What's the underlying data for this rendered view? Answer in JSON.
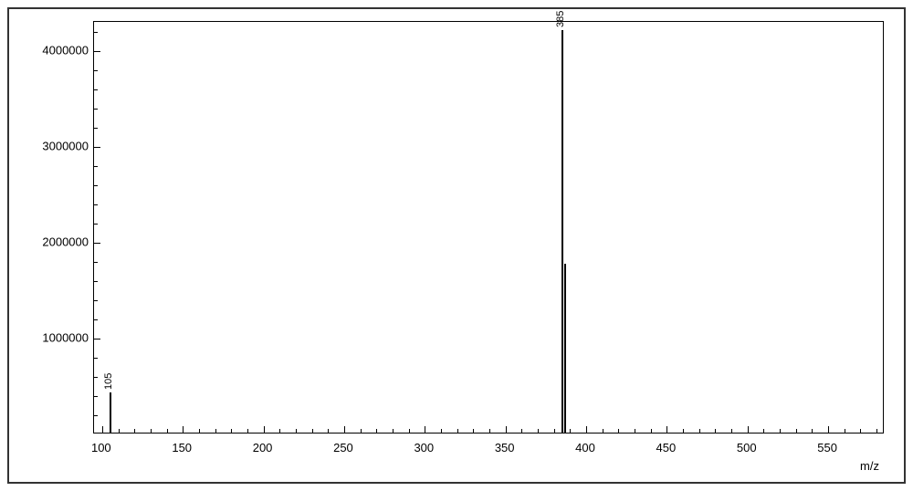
{
  "spectrum": {
    "type": "mass-spectrum-bar",
    "background_color": "#ffffff",
    "axis_color": "#000000",
    "bar_color": "#000000",
    "label_fontsize": 13,
    "peak_label_fontsize": 11,
    "xlim": [
      95,
      585
    ],
    "ylim": [
      0,
      4300000
    ],
    "x_ticks_major": [
      100,
      150,
      200,
      250,
      300,
      350,
      400,
      450,
      500,
      550
    ],
    "x_ticks_minor_step": 10,
    "y_ticks_major": [
      1000000,
      2000000,
      3000000,
      4000000
    ],
    "y_ticks_minor_pos": [
      200000,
      400000,
      600000,
      800000,
      1200000,
      1400000,
      1600000,
      1800000,
      2200000,
      2400000,
      2600000,
      2800000,
      3200000,
      3400000,
      3600000,
      3800000,
      4200000
    ],
    "x_axis_label": "m/z",
    "peaks": [
      {
        "mz": 105,
        "intensity": 420000,
        "label": "105",
        "width": 2
      },
      {
        "mz": 385,
        "intensity": 4200000,
        "label": "385",
        "width": 2
      },
      {
        "mz": 387,
        "intensity": 1760000,
        "label": "",
        "width": 2
      }
    ]
  }
}
